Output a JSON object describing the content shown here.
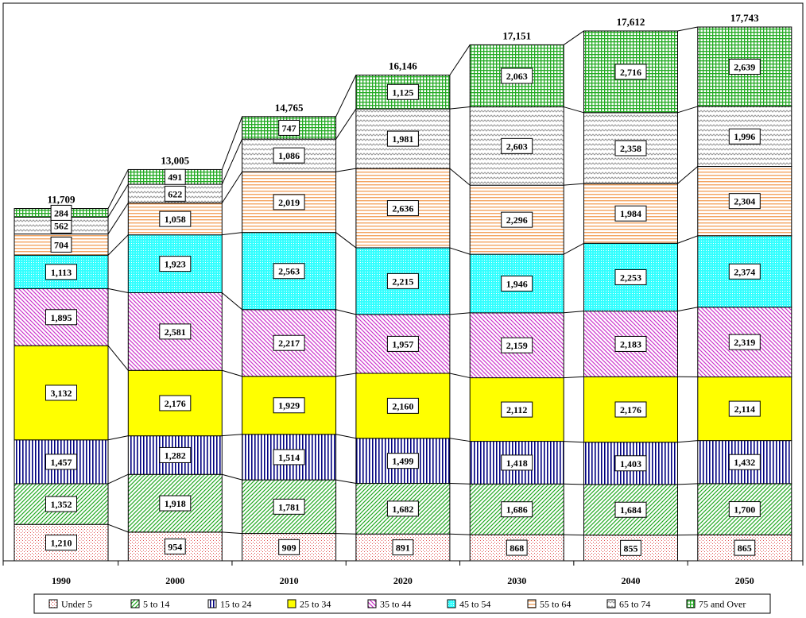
{
  "chart_data": {
    "type": "bar",
    "stacked": true,
    "categories": [
      "1990",
      "2000",
      "2010",
      "2020",
      "2030",
      "2040",
      "2050"
    ],
    "totals": [
      "11,709",
      "13,005",
      "14,765",
      "16,146",
      "17,151",
      "17,612",
      "17,743"
    ],
    "total_values": [
      11709,
      13005,
      14765,
      16146,
      17151,
      17612,
      17743
    ],
    "legend_position": "bottom",
    "grid": false,
    "series": [
      {
        "name": "Under 5",
        "color": "#fde9e7",
        "pattern": "dots",
        "values": [
          1210,
          954,
          909,
          891,
          868,
          855,
          865
        ],
        "labels": [
          "1,210",
          "954",
          "909",
          "891",
          "868",
          "855",
          "865"
        ]
      },
      {
        "name": "5 to 14",
        "color": "#ccffcc",
        "pattern": "diag-up",
        "values": [
          1352,
          1918,
          1781,
          1682,
          1686,
          1684,
          1700
        ],
        "labels": [
          "1,352",
          "1,918",
          "1,781",
          "1,682",
          "1,686",
          "1,684",
          "1,700"
        ]
      },
      {
        "name": "15 to 24",
        "color": "#000080",
        "pattern": "vertical",
        "values": [
          1457,
          1282,
          1514,
          1499,
          1418,
          1403,
          1432
        ],
        "labels": [
          "1,457",
          "1,282",
          "1,514",
          "1,499",
          "1,418",
          "1,403",
          "1,432"
        ]
      },
      {
        "name": "25 to 34",
        "color": "#ffff00",
        "pattern": "solid",
        "values": [
          3132,
          2176,
          1929,
          2160,
          2112,
          2176,
          2114
        ],
        "labels": [
          "3,132",
          "2,176",
          "1,929",
          "2,160",
          "2,112",
          "2,176",
          "2,114"
        ]
      },
      {
        "name": "35 to 44",
        "color": "#cc33cc",
        "pattern": "diag-down",
        "values": [
          1895,
          2581,
          2217,
          1957,
          2159,
          2183,
          2319
        ],
        "labels": [
          "1,895",
          "2,581",
          "2,217",
          "1,957",
          "2,159",
          "2,183",
          "2,319"
        ]
      },
      {
        "name": "45 to 54",
        "color": "#33ffff",
        "pattern": "dense-dots",
        "values": [
          1113,
          1923,
          2563,
          2215,
          1946,
          2253,
          2374
        ],
        "labels": [
          "1,113",
          "1,923",
          "2,563",
          "2,215",
          "1,946",
          "2,253",
          "2,374"
        ]
      },
      {
        "name": "55 to 64",
        "color": "#f4a460",
        "pattern": "horizontal",
        "values": [
          704,
          1058,
          2019,
          2636,
          2296,
          1984,
          2304
        ],
        "labels": [
          "704",
          "1,058",
          "2,019",
          "2,636",
          "2,296",
          "1,984",
          "2,304"
        ]
      },
      {
        "name": "65 to 74",
        "color": "#999999",
        "pattern": "wave",
        "values": [
          562,
          622,
          1086,
          1981,
          2603,
          2358,
          1996
        ],
        "labels": [
          "562",
          "622",
          "1,086",
          "1,981",
          "2,603",
          "2,358",
          "1,996"
        ]
      },
      {
        "name": "75 and Over",
        "color": "#22aa22",
        "pattern": "grid",
        "values": [
          284,
          491,
          747,
          1125,
          2063,
          2716,
          2639
        ],
        "labels": [
          "284",
          "491",
          "747",
          "1,125",
          "2,063",
          "2,716",
          "2,639"
        ]
      }
    ]
  }
}
